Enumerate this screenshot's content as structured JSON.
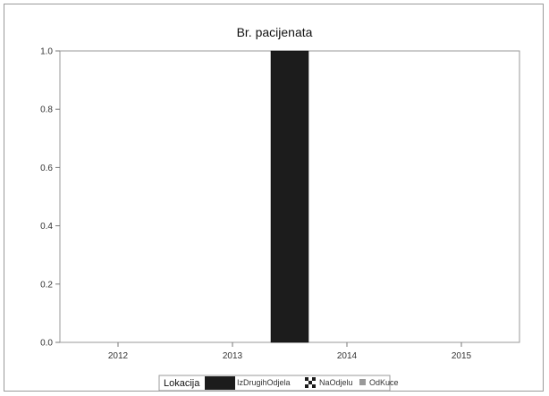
{
  "chart_data": {
    "type": "bar",
    "title": "Br. pacijenata",
    "xlabel": "",
    "ylabel": "",
    "categories": [
      "2012",
      "2013",
      "2014",
      "2015"
    ],
    "ylim": [
      0,
      1
    ],
    "yticks": [
      "0.0",
      "0.2",
      "0.4",
      "0.6",
      "0.8",
      "1.0"
    ],
    "series": [
      {
        "name": "IzDrugihOdjela",
        "values": [
          0,
          0,
          1,
          0
        ],
        "color": "#1c1c1c"
      },
      {
        "name": "NaOdjelu",
        "values": [
          0,
          0,
          0,
          0
        ],
        "color": "#1c1c1c"
      },
      {
        "name": "OdKuce",
        "values": [
          0,
          0,
          0,
          0
        ],
        "color": "#9a9a9a"
      }
    ],
    "bar_position": "between 2013 and 2014",
    "legend": {
      "title": "Lokacija",
      "placement": "bottom-center",
      "items": [
        {
          "label": "IzDrugihOdjela",
          "icon": "solid-square-icon",
          "color": "#1c1c1c"
        },
        {
          "label": "NaOdjelu",
          "icon": "checker-square-icon",
          "color": "#1c1c1c"
        },
        {
          "label": "OdKuce",
          "icon": "small-square-icon",
          "color": "#9a9a9a"
        }
      ]
    },
    "grid": false
  }
}
